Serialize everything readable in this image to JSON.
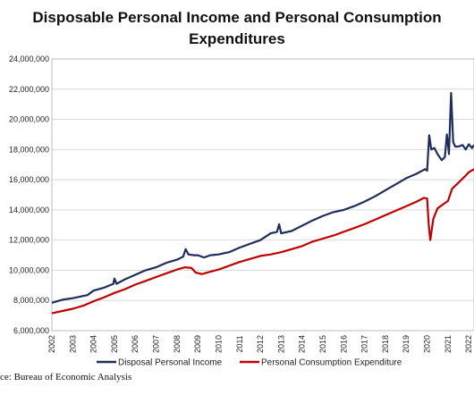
{
  "chart_data": {
    "type": "line",
    "title_line1": "Disposable Personal Income and Personal Consumption",
    "title_line2": "Expenditures",
    "xlabel": "",
    "ylabel": "",
    "xlim": [
      2002.0,
      2022.25
    ],
    "ylim": [
      6000000,
      24000000
    ],
    "y_ticks": [
      "6,000,000",
      "8,000,000",
      "10,000,000",
      "12,000,000",
      "14,000,000",
      "16,000,000",
      "18,000,000",
      "20,000,000",
      "22,000,000",
      "24,000,000"
    ],
    "y_tick_values": [
      6000000,
      8000000,
      10000000,
      12000000,
      14000000,
      16000000,
      18000000,
      20000000,
      22000000,
      24000000
    ],
    "x_ticks": [
      "2002",
      "2003",
      "2004",
      "2005",
      "2006",
      "2007",
      "2008",
      "2009",
      "2010",
      "2011",
      "2012",
      "2013",
      "2014",
      "2015",
      "2016",
      "2017",
      "2018",
      "2019",
      "2020",
      "2021",
      "2022"
    ],
    "x_tick_values": [
      2002,
      2003,
      2004,
      2005,
      2006,
      2007,
      2008,
      2009,
      2010,
      2011,
      2012,
      2013,
      2014,
      2015,
      2016,
      2017,
      2018,
      2019,
      2020,
      2021,
      2022
    ],
    "grid": {
      "horizontal": true,
      "vertical": false
    },
    "legend_position": "bottom",
    "series": [
      {
        "name": "Disposal Personal Income",
        "color": "#1f2d5c",
        "points": [
          [
            2002.0,
            7850000
          ],
          [
            2002.5,
            8050000
          ],
          [
            2003.0,
            8150000
          ],
          [
            2003.5,
            8300000
          ],
          [
            2003.7,
            8350000
          ],
          [
            2004.0,
            8650000
          ],
          [
            2004.5,
            8850000
          ],
          [
            2004.95,
            9100000
          ],
          [
            2005.0,
            9450000
          ],
          [
            2005.1,
            9100000
          ],
          [
            2005.5,
            9400000
          ],
          [
            2006.0,
            9700000
          ],
          [
            2006.5,
            10000000
          ],
          [
            2007.0,
            10200000
          ],
          [
            2007.5,
            10500000
          ],
          [
            2008.0,
            10700000
          ],
          [
            2008.3,
            10900000
          ],
          [
            2008.42,
            11400000
          ],
          [
            2008.55,
            11050000
          ],
          [
            2008.8,
            11000000
          ],
          [
            2009.0,
            11000000
          ],
          [
            2009.3,
            10850000
          ],
          [
            2009.6,
            11000000
          ],
          [
            2010.0,
            11050000
          ],
          [
            2010.5,
            11200000
          ],
          [
            2011.0,
            11500000
          ],
          [
            2011.5,
            11750000
          ],
          [
            2012.0,
            12000000
          ],
          [
            2012.5,
            12450000
          ],
          [
            2012.8,
            12550000
          ],
          [
            2012.9,
            13050000
          ],
          [
            2013.0,
            12450000
          ],
          [
            2013.5,
            12600000
          ],
          [
            2014.0,
            12950000
          ],
          [
            2014.5,
            13300000
          ],
          [
            2015.0,
            13600000
          ],
          [
            2015.5,
            13850000
          ],
          [
            2016.0,
            14000000
          ],
          [
            2016.5,
            14250000
          ],
          [
            2017.0,
            14550000
          ],
          [
            2017.5,
            14900000
          ],
          [
            2018.0,
            15300000
          ],
          [
            2018.5,
            15700000
          ],
          [
            2019.0,
            16100000
          ],
          [
            2019.5,
            16400000
          ],
          [
            2019.9,
            16700000
          ],
          [
            2020.0,
            16600000
          ],
          [
            2020.1,
            18950000
          ],
          [
            2020.2,
            18000000
          ],
          [
            2020.35,
            18100000
          ],
          [
            2020.5,
            17700000
          ],
          [
            2020.6,
            17500000
          ],
          [
            2020.7,
            17300000
          ],
          [
            2020.85,
            17500000
          ],
          [
            2020.95,
            19000000
          ],
          [
            2021.05,
            17700000
          ],
          [
            2021.15,
            21750000
          ],
          [
            2021.25,
            18500000
          ],
          [
            2021.35,
            18200000
          ],
          [
            2021.5,
            18200000
          ],
          [
            2021.7,
            18300000
          ],
          [
            2021.85,
            18000000
          ],
          [
            2022.0,
            18350000
          ],
          [
            2022.15,
            18100000
          ],
          [
            2022.25,
            18300000
          ]
        ]
      },
      {
        "name": "Personal Consumption Expenditure",
        "color": "#c00000",
        "points": [
          [
            2002.0,
            7150000
          ],
          [
            2002.5,
            7300000
          ],
          [
            2003.0,
            7450000
          ],
          [
            2003.5,
            7650000
          ],
          [
            2004.0,
            7950000
          ],
          [
            2004.5,
            8200000
          ],
          [
            2005.0,
            8500000
          ],
          [
            2005.5,
            8750000
          ],
          [
            2006.0,
            9050000
          ],
          [
            2006.5,
            9300000
          ],
          [
            2007.0,
            9550000
          ],
          [
            2007.5,
            9800000
          ],
          [
            2008.0,
            10050000
          ],
          [
            2008.4,
            10200000
          ],
          [
            2008.7,
            10150000
          ],
          [
            2008.9,
            9850000
          ],
          [
            2009.2,
            9750000
          ],
          [
            2009.6,
            9900000
          ],
          [
            2010.0,
            10050000
          ],
          [
            2010.5,
            10300000
          ],
          [
            2011.0,
            10550000
          ],
          [
            2011.5,
            10750000
          ],
          [
            2012.0,
            10950000
          ],
          [
            2012.5,
            11050000
          ],
          [
            2013.0,
            11200000
          ],
          [
            2013.5,
            11400000
          ],
          [
            2014.0,
            11600000
          ],
          [
            2014.5,
            11900000
          ],
          [
            2015.0,
            12100000
          ],
          [
            2015.5,
            12300000
          ],
          [
            2016.0,
            12550000
          ],
          [
            2016.5,
            12800000
          ],
          [
            2017.0,
            13050000
          ],
          [
            2017.5,
            13350000
          ],
          [
            2018.0,
            13650000
          ],
          [
            2018.5,
            13950000
          ],
          [
            2019.0,
            14250000
          ],
          [
            2019.5,
            14550000
          ],
          [
            2019.85,
            14800000
          ],
          [
            2020.0,
            14750000
          ],
          [
            2020.08,
            13000000
          ],
          [
            2020.15,
            12000000
          ],
          [
            2020.3,
            13400000
          ],
          [
            2020.5,
            14100000
          ],
          [
            2020.8,
            14400000
          ],
          [
            2021.0,
            14600000
          ],
          [
            2021.2,
            15400000
          ],
          [
            2021.5,
            15800000
          ],
          [
            2021.8,
            16200000
          ],
          [
            2022.0,
            16500000
          ],
          [
            2022.25,
            16700000
          ]
        ]
      }
    ]
  },
  "source_text": "ce: Bureau of Economic Analysis"
}
